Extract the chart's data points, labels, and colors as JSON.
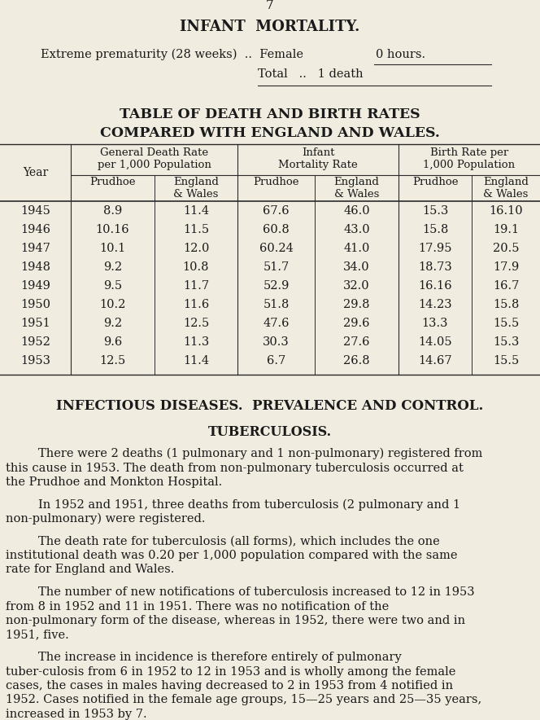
{
  "bg_color": "#f0ece0",
  "page_number": "7",
  "section_title": "INFANT MORTALITY.",
  "table_title_line1": "TABLE OF DEATH AND BIRTH RATES",
  "table_title_line2": "COMPARED WITH ENGLAND AND WALES.",
  "table_data": [
    [
      "1945",
      "8.9",
      "11.4",
      "67.6",
      "46.0",
      "15.3",
      "16.10"
    ],
    [
      "1946",
      "10.16",
      "11.5",
      "60.8",
      "43.0",
      "15.8",
      "19.1"
    ],
    [
      "1947",
      "10.1",
      "12.0",
      "60.24",
      "41.0",
      "17.95",
      "20.5"
    ],
    [
      "1948",
      "9.2",
      "10.8",
      "51.7",
      "34.0",
      "18.73",
      "17.9"
    ],
    [
      "1949",
      "9.5",
      "11.7",
      "52.9",
      "32.0",
      "16.16",
      "16.7"
    ],
    [
      "1950",
      "10.2",
      "11.6",
      "51.8",
      "29.8",
      "14.23",
      "15.8"
    ],
    [
      "1951",
      "9.2",
      "12.5",
      "47.6",
      "29.6",
      "13.3",
      "15.5"
    ],
    [
      "1952",
      "9.6",
      "11.3",
      "30.3",
      "27.6",
      "14.05",
      "15.3"
    ],
    [
      "1953",
      "12.5",
      "11.4",
      "6.7",
      "26.8",
      "14.67",
      "15.5"
    ]
  ],
  "infectious_title": "INFECTIOUS DISEASES.  PREVALENCE AND CONTROL.",
  "tuberculosis_title": "TUBERCULOSIS.",
  "paragraphs": [
    "There were 2 deaths (1 pulmonary and 1 non-pulmonary) registered from this cause in 1953.  The death from non-pulmonary tuberculosis occurred at the Prudhoe and Monkton Hospital.",
    "In 1952 and 1951, three deaths from tuberculosis (2 pulmonary and 1 non-pulmonary) were registered.",
    "The death rate for tuberculosis (all forms), which includes the one institutional death was 0.20 per 1,000 population compared with the same rate for England and Wales.",
    "The number of new notifications of tuberculosis increased to 12 in 1953 from 8 in 1952 and 11 in 1951.    There was no notification of the non-pulmonary form of the disease, whereas in 1952, there were two and in 1951, five.",
    "The increase in incidence is therefore entirely of pulmonary tuber-culosis from 6 in 1952 to 12 in 1953 and is wholly among the female cases, the cases in males having decreased to 2 in 1953 from 4 notified in 1952.   Cases notified in the female age groups, 15—25 years and 25—35 years, increased in 1953 by 7."
  ],
  "text_color": "#1a1a1a",
  "line_color": "#2a2a2a"
}
